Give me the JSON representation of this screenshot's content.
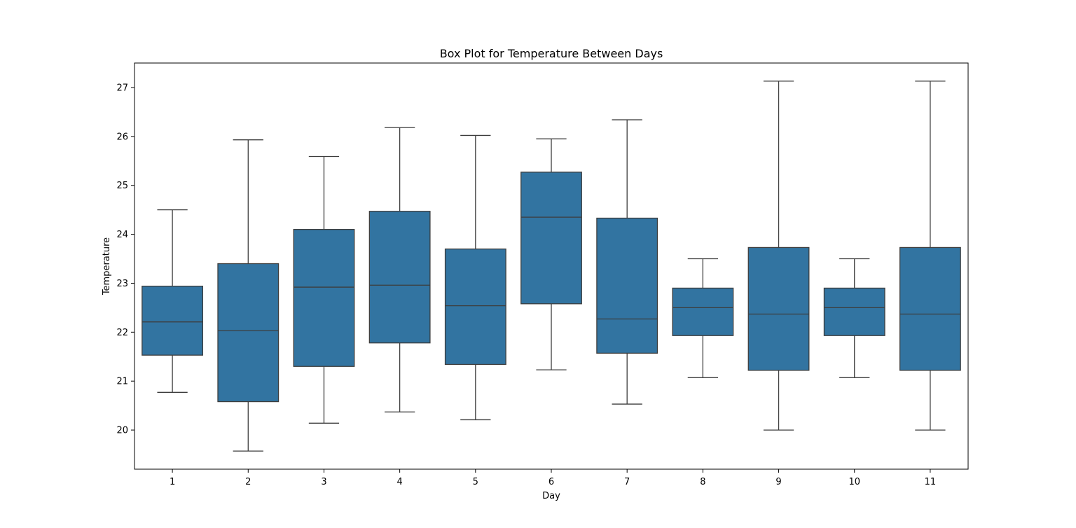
{
  "chart_data": {
    "type": "box",
    "title": "Box Plot for Temperature Between Days",
    "xlabel": "Day",
    "ylabel": "Temperature",
    "categories": [
      "1",
      "2",
      "3",
      "4",
      "5",
      "6",
      "7",
      "8",
      "9",
      "10",
      "11"
    ],
    "ylim": [
      19.2,
      27.5
    ],
    "yticks": [
      20,
      21,
      22,
      23,
      24,
      25,
      26,
      27
    ],
    "grid": false,
    "box_color": "#3274a1",
    "line_color": "#3d3d3d",
    "boxes": [
      {
        "day": "1",
        "whisker_low": 20.77,
        "q1": 21.53,
        "median": 22.21,
        "q3": 22.94,
        "whisker_high": 24.5
      },
      {
        "day": "2",
        "whisker_low": 19.57,
        "q1": 20.58,
        "median": 22.03,
        "q3": 23.4,
        "whisker_high": 25.93
      },
      {
        "day": "3",
        "whisker_low": 20.14,
        "q1": 21.3,
        "median": 22.92,
        "q3": 24.1,
        "whisker_high": 25.59
      },
      {
        "day": "4",
        "whisker_low": 20.37,
        "q1": 21.78,
        "median": 22.96,
        "q3": 24.47,
        "whisker_high": 26.18
      },
      {
        "day": "5",
        "whisker_low": 20.21,
        "q1": 21.34,
        "median": 22.54,
        "q3": 23.7,
        "whisker_high": 26.02
      },
      {
        "day": "6",
        "whisker_low": 21.23,
        "q1": 22.58,
        "median": 24.35,
        "q3": 25.27,
        "whisker_high": 25.95
      },
      {
        "day": "7",
        "whisker_low": 20.53,
        "q1": 21.57,
        "median": 22.27,
        "q3": 24.33,
        "whisker_high": 26.34
      },
      {
        "day": "8",
        "whisker_low": 21.07,
        "q1": 21.93,
        "median": 22.5,
        "q3": 22.9,
        "whisker_high": 23.5
      },
      {
        "day": "9",
        "whisker_low": 20.0,
        "q1": 21.22,
        "median": 22.37,
        "q3": 23.73,
        "whisker_high": 27.13
      },
      {
        "day": "10",
        "whisker_low": 21.07,
        "q1": 21.93,
        "median": 22.5,
        "q3": 22.9,
        "whisker_high": 23.5
      },
      {
        "day": "11",
        "whisker_low": 20.0,
        "q1": 21.22,
        "median": 22.37,
        "q3": 23.73,
        "whisker_high": 27.13
      }
    ]
  }
}
